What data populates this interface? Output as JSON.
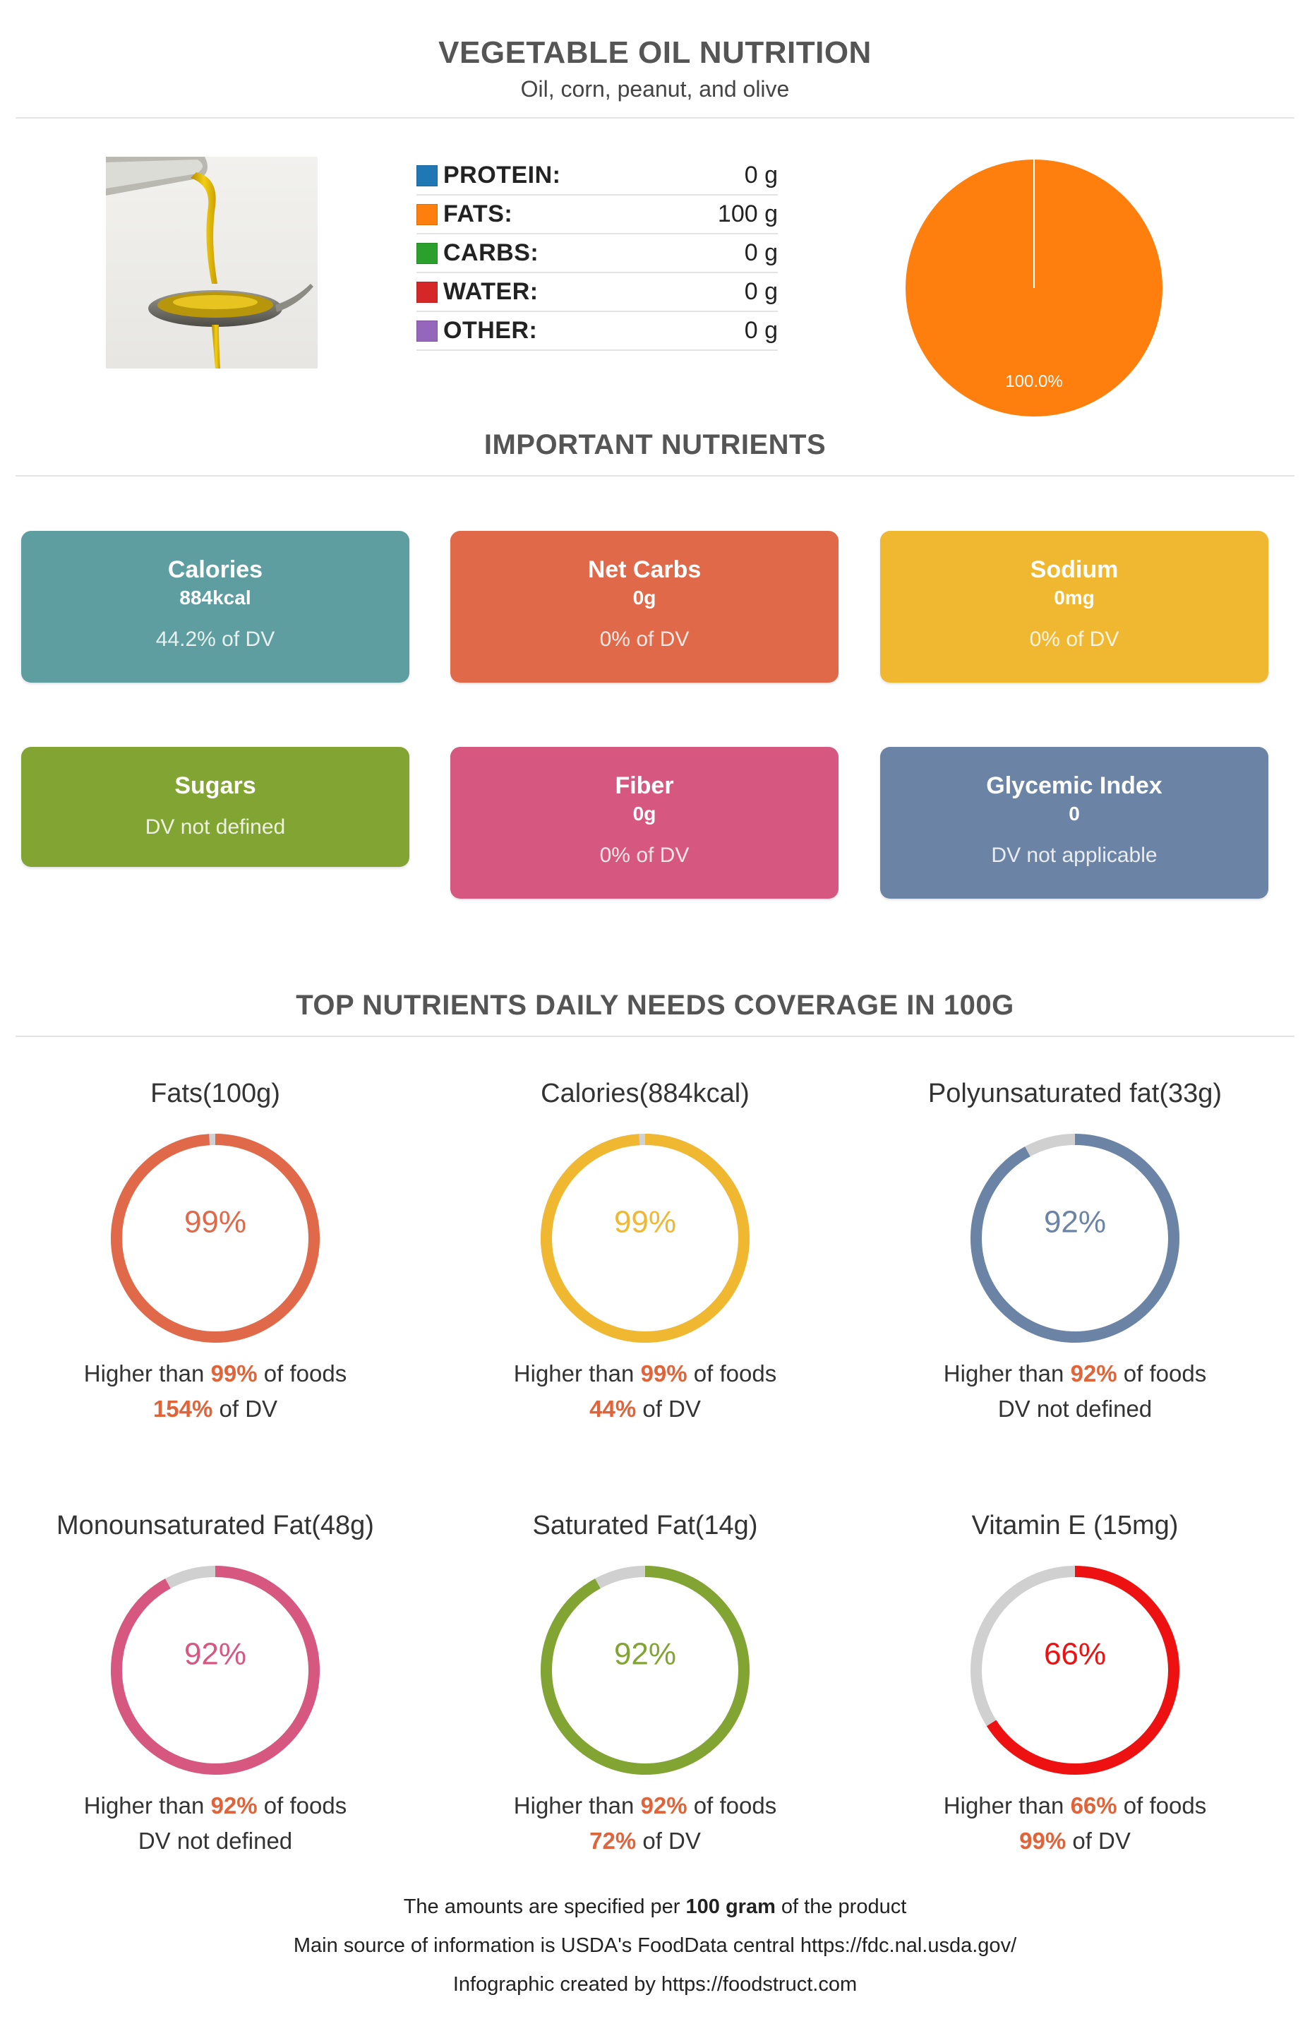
{
  "header": {
    "title": "VEGETABLE OIL NUTRITION",
    "subtitle": "Oil, corn, peanut, and olive"
  },
  "macros": [
    {
      "label": "PROTEIN:",
      "value": "0 g",
      "color": "#1f77b4"
    },
    {
      "label": "FATS:",
      "value": "100 g",
      "color": "#ff7f0e"
    },
    {
      "label": "CARBS:",
      "value": "0 g",
      "color": "#2ca02c"
    },
    {
      "label": "WATER:",
      "value": "0 g",
      "color": "#d62728"
    },
    {
      "label": "OTHER:",
      "value": "0 g",
      "color": "#9467bd"
    }
  ],
  "chart_data": [
    {
      "type": "pie",
      "categories": [
        "PROTEIN",
        "FATS",
        "CARBS",
        "WATER",
        "OTHER"
      ],
      "values": [
        0,
        100,
        0,
        0,
        0
      ],
      "slice_labels": [
        "",
        "100.0%",
        "",
        "",
        ""
      ],
      "colors": [
        "#1f77b4",
        "#ff7f0e",
        "#2ca02c",
        "#d62728",
        "#9467bd"
      ]
    },
    {
      "type": "donut",
      "title": "Top nutrients daily needs coverage",
      "categories": [
        "Fats(100g)",
        "Calories(884kcal)",
        "Polyunsaturated fat(33g)",
        "Monounsaturated Fat(48g)",
        "Saturated Fat(14g)",
        "Vitamin E (15mg)"
      ],
      "values": [
        99,
        99,
        92,
        92,
        92,
        66
      ],
      "unit": "%"
    }
  ],
  "sections": {
    "important": "IMPORTANT NUTRIENTS",
    "coverage": "TOP NUTRIENTS DAILY NEEDS COVERAGE IN 100G"
  },
  "cards": [
    {
      "title": "Calories",
      "amount": "884kcal",
      "dv": "44.2% of DV",
      "color": "#5f9ea0"
    },
    {
      "title": "Net Carbs",
      "amount": "0g",
      "dv": "0% of DV",
      "color": "#e0694a"
    },
    {
      "title": "Sodium",
      "amount": "0mg",
      "dv": "0% of DV",
      "color": "#f0b731"
    },
    {
      "title": "Sugars",
      "amount": "",
      "dv": "DV not defined",
      "color": "#82a432"
    },
    {
      "title": "Fiber",
      "amount": "0g",
      "dv": "0% of DV",
      "color": "#d65780"
    },
    {
      "title": "Glycemic Index",
      "amount": "0",
      "dv": "DV not applicable",
      "color": "#6b84a6"
    }
  ],
  "rings": [
    {
      "title": "Fats(100g)",
      "percent": 99,
      "label": "99%",
      "color": "#e0694a",
      "rank_prefix": "Higher than ",
      "rank": "99%",
      "rank_suffix": " of foods",
      "dv_value": "154%",
      "dv_suffix": " of DV",
      "dv_plain": ""
    },
    {
      "title": "Calories(884kcal)",
      "percent": 99,
      "label": "99%",
      "color": "#f0b731",
      "rank_prefix": "Higher than ",
      "rank": "99%",
      "rank_suffix": " of foods",
      "dv_value": "44%",
      "dv_suffix": " of DV",
      "dv_plain": ""
    },
    {
      "title": "Polyunsaturated fat(33g)",
      "percent": 92,
      "label": "92%",
      "color": "#6b84a6",
      "rank_prefix": "Higher than ",
      "rank": "92%",
      "rank_suffix": " of foods",
      "dv_value": "",
      "dv_suffix": "",
      "dv_plain": "DV not defined"
    },
    {
      "title": "Monounsaturated Fat(48g)",
      "percent": 92,
      "label": "92%",
      "color": "#d65780",
      "rank_prefix": "Higher than ",
      "rank": "92%",
      "rank_suffix": " of foods",
      "dv_value": "",
      "dv_suffix": "",
      "dv_plain": "DV not defined"
    },
    {
      "title": "Saturated Fat(14g)",
      "percent": 92,
      "label": "92%",
      "color": "#82a432",
      "rank_prefix": "Higher than ",
      "rank": "92%",
      "rank_suffix": " of foods",
      "dv_value": "72%",
      "dv_suffix": " of DV",
      "dv_plain": ""
    },
    {
      "title": "Vitamin E (15mg)",
      "percent": 66,
      "label": "66%",
      "color": "#ee1111",
      "rank_prefix": "Higher than ",
      "rank": "66%",
      "rank_suffix": " of foods",
      "dv_value": "99%",
      "dv_suffix": " of DV",
      "dv_plain": ""
    }
  ],
  "footer": {
    "line1_prefix": "The amounts are specified per ",
    "line1_bold": "100 gram",
    "line1_suffix": " of the product",
    "line2": "Main source of information is USDA's FoodData central https://fdc.nal.usda.gov/",
    "line3": "Infographic created by https://foodstruct.com"
  }
}
